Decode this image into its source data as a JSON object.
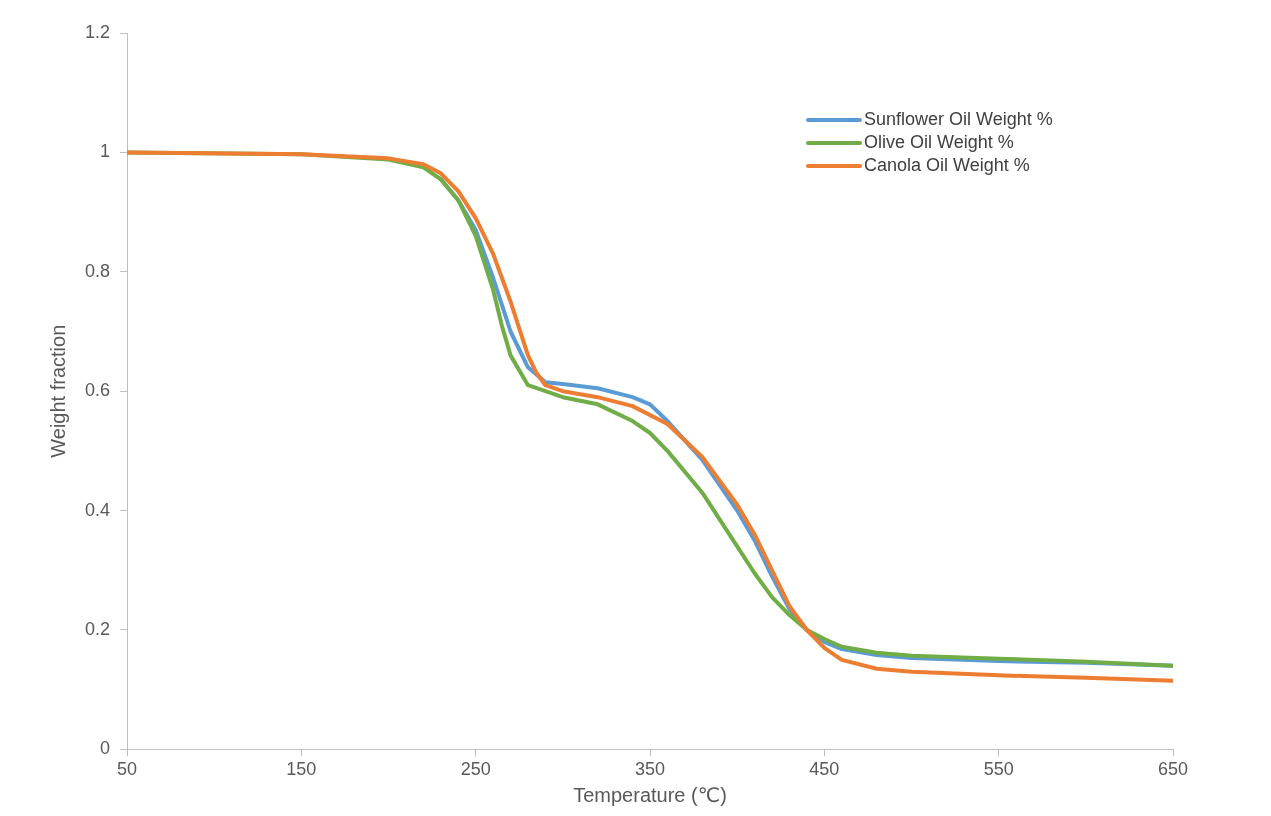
{
  "chart_data": {
    "type": "line",
    "xlabel": "Temperature (℃)",
    "ylabel": "Weight fraction",
    "xlim": [
      50,
      650
    ],
    "ylim": [
      0,
      1.2
    ],
    "xticks": [
      50,
      150,
      250,
      350,
      450,
      550,
      650
    ],
    "yticks": [
      0,
      0.2,
      0.4,
      0.6,
      0.8,
      1,
      1.2
    ],
    "grid": false,
    "legend": "top right",
    "marker": "none",
    "line_style": "solid",
    "series": [
      {
        "name": "Sunflower Oil Weight %",
        "color": "#5b9bd5",
        "x": [
          230,
          240,
          250,
          260,
          270,
          280,
          290,
          300,
          320,
          340,
          350,
          360,
          380,
          400,
          410,
          420,
          430,
          440,
          450,
          460,
          480,
          500,
          550,
          600,
          650
        ],
        "values": [
          0.955,
          0.92,
          0.87,
          0.79,
          0.7,
          0.64,
          0.615,
          0.612,
          0.605,
          0.59,
          0.578,
          0.55,
          0.485,
          0.4,
          0.35,
          0.29,
          0.235,
          0.2,
          0.18,
          0.168,
          0.158,
          0.153,
          0.148,
          0.145,
          0.14
        ]
      },
      {
        "name": "Olive Oil Weight %",
        "color": "#70ad47",
        "x": [
          50,
          150,
          200,
          220,
          230,
          240,
          250,
          260,
          265,
          270,
          280,
          290,
          300,
          320,
          340,
          350,
          360,
          380,
          400,
          410,
          420,
          430,
          440,
          450,
          460,
          480,
          500,
          550,
          600,
          650
        ],
        "values": [
          1,
          0.997,
          0.988,
          0.975,
          0.955,
          0.92,
          0.86,
          0.77,
          0.71,
          0.66,
          0.61,
          0.6,
          0.59,
          0.578,
          0.55,
          0.53,
          0.5,
          0.43,
          0.34,
          0.295,
          0.255,
          0.225,
          0.2,
          0.185,
          0.172,
          0.162,
          0.157,
          0.152,
          0.147,
          0.14
        ]
      },
      {
        "name": "Canola Oil Weight %",
        "color": "#ed7d31",
        "x": [
          50,
          150,
          200,
          220,
          230,
          240,
          250,
          260,
          270,
          280,
          285,
          290,
          300,
          320,
          340,
          360,
          380,
          400,
          410,
          420,
          430,
          440,
          450,
          460,
          480,
          500,
          550,
          600,
          650
        ],
        "values": [
          1,
          0.997,
          0.99,
          0.98,
          0.965,
          0.935,
          0.89,
          0.83,
          0.75,
          0.66,
          0.63,
          0.61,
          0.6,
          0.59,
          0.575,
          0.545,
          0.49,
          0.41,
          0.36,
          0.3,
          0.24,
          0.2,
          0.17,
          0.15,
          0.135,
          0.13,
          0.124,
          0.12,
          0.115
        ]
      }
    ]
  }
}
